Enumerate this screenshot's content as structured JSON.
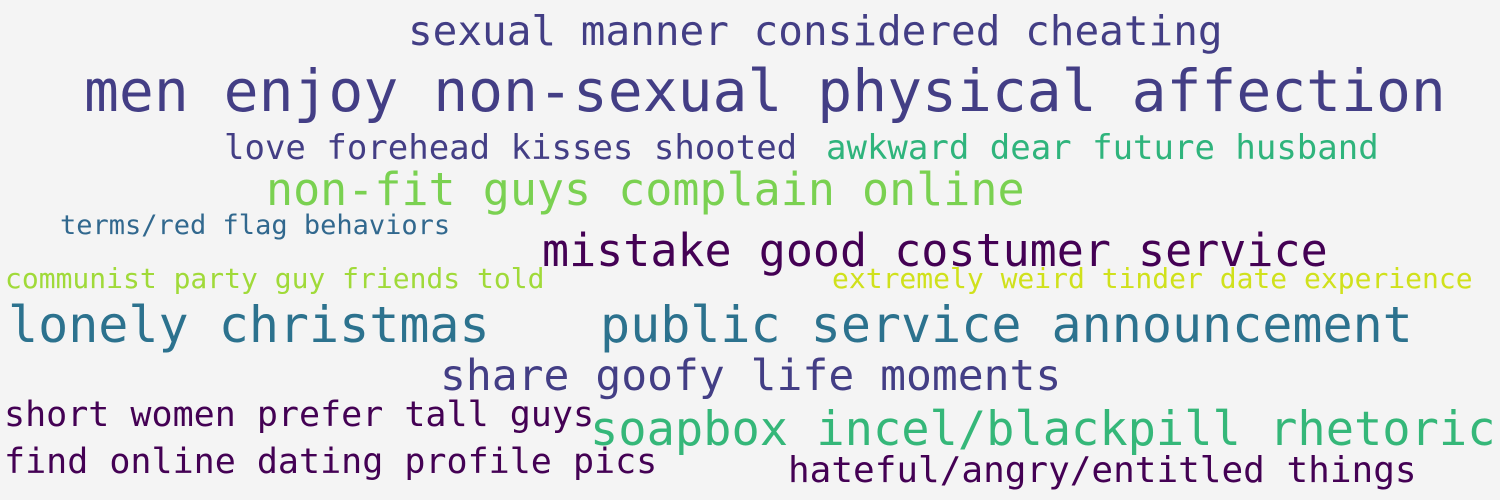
{
  "word_cloud": {
    "phrases": [
      {
        "text": "sexual manner considered cheating",
        "color": "#433e85"
      },
      {
        "text": "men enjoy non-sexual physical affection",
        "color": "#433e85"
      },
      {
        "text": "love forehead kisses shooted",
        "color": "#433e85"
      },
      {
        "text": "awkward dear future husband",
        "color": "#2fb47c"
      },
      {
        "text": "non-fit guys complain online",
        "color": "#7ad151"
      },
      {
        "text": "terms/red flag behaviors",
        "color": "#31688e"
      },
      {
        "text": "mistake good costumer service",
        "color": "#440154"
      },
      {
        "text": "communist party guy friends told",
        "color": "#a0da39"
      },
      {
        "text": "extremely weird tinder date experience",
        "color": "#d0e11c"
      },
      {
        "text": "lonely christmas",
        "color": "#2c728e"
      },
      {
        "text": "public service announcement",
        "color": "#2c728e"
      },
      {
        "text": "share goofy life moments",
        "color": "#433e85"
      },
      {
        "text": "short women prefer tall guys",
        "color": "#440154"
      },
      {
        "text": "soapbox incel/blackpill rhetoric",
        "color": "#35b779"
      },
      {
        "text": "find online dating profile pics",
        "color": "#440154"
      },
      {
        "text": "hateful/angry/entitled things",
        "color": "#440154"
      }
    ]
  }
}
